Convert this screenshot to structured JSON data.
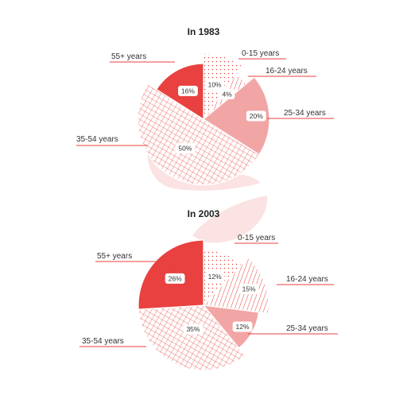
{
  "chart_data": [
    {
      "type": "pie",
      "title": "In 1983",
      "categories": [
        "0-15 years",
        "16-24 years",
        "25-34 years",
        "35-54 years",
        "55+ years"
      ],
      "values": [
        10,
        4,
        20,
        50,
        16
      ],
      "value_labels": [
        "10%",
        "4%",
        "20%",
        "50%",
        "16%"
      ],
      "start": "12 o'clock, clockwise",
      "legend": "none (callout labels)"
    },
    {
      "type": "pie",
      "title": "In 2003",
      "categories": [
        "0-15 years",
        "16-24 years",
        "25-34 years",
        "35-54 years",
        "55+ years"
      ],
      "values": [
        12,
        15,
        12,
        35,
        26
      ],
      "value_labels": [
        "12%",
        "15%",
        "12%",
        "35%",
        "26%"
      ],
      "start": "12 o'clock, clockwise",
      "legend": "none (callout labels)"
    }
  ],
  "colors": {
    "slice_fills": [
      "#ffffff",
      "#ffffff",
      "#f2a5a5",
      "#ffffff",
      "#e8413f"
    ],
    "pattern_ink": "#e8413f",
    "leader_line": "#e8413f",
    "watermark": "#fbe3e3"
  }
}
